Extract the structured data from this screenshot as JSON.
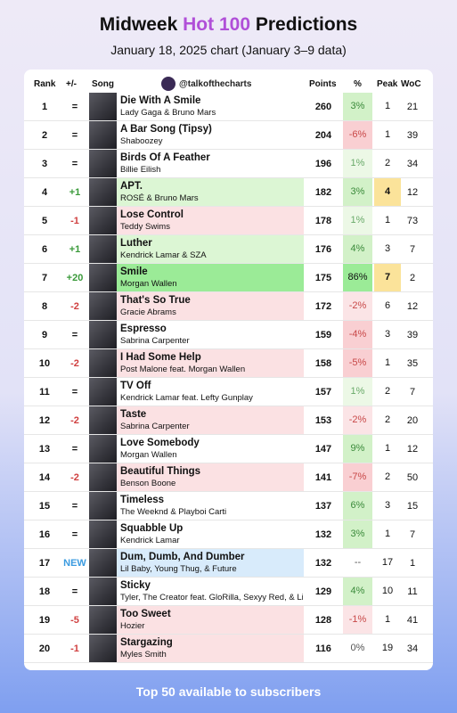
{
  "header": {
    "title": [
      "Midweek",
      "Hot 100",
      "Predictions"
    ],
    "subtitle": "January 18, 2025 chart (January 3–9 data)"
  },
  "table": {
    "columns": [
      "Rank",
      "+/-",
      "Song",
      "@talkofthecharts",
      "Points",
      "%",
      "Peak",
      "WoC"
    ],
    "rows": [
      {
        "rank": "1",
        "change": "=",
        "song": "Die With A Smile",
        "artist": "Lady Gaga & Bruno Mars",
        "points": 260,
        "pct": "3%",
        "peak": 1,
        "woc": 21
      },
      {
        "rank": "2",
        "change": "=",
        "song": "A Bar Song (Tipsy)",
        "artist": "Shaboozey",
        "points": 204,
        "pct": "-6%",
        "peak": 1,
        "woc": 39
      },
      {
        "rank": "3",
        "change": "=",
        "song": "Birds Of A Feather",
        "artist": "Billie Eilish",
        "points": 196,
        "pct": "1%",
        "peak": 2,
        "woc": 34
      },
      {
        "rank": "4",
        "change": "+1",
        "song": "APT.",
        "artist": "ROSÉ & Bruno Mars",
        "points": 182,
        "pct": "3%",
        "peak": 4,
        "woc": 12,
        "highlight": true
      },
      {
        "rank": "5",
        "change": "-1",
        "song": "Lose Control",
        "artist": "Teddy Swims",
        "points": 178,
        "pct": "1%",
        "peak": 1,
        "woc": 73
      },
      {
        "rank": "6",
        "change": "+1",
        "song": "Luther",
        "artist": "Kendrick Lamar & SZA",
        "points": 176,
        "pct": "4%",
        "peak": 3,
        "woc": 7
      },
      {
        "rank": "7",
        "change": "+20",
        "song": "Smile",
        "artist": "Morgan Wallen",
        "points": 175,
        "pct": "86%",
        "peak": 7,
        "woc": 2,
        "highlight": true
      },
      {
        "rank": "8",
        "change": "-2",
        "song": "That's So True",
        "artist": "Gracie Abrams",
        "points": 172,
        "pct": "-2%",
        "peak": 6,
        "woc": 12
      },
      {
        "rank": "9",
        "change": "=",
        "song": "Espresso",
        "artist": "Sabrina Carpenter",
        "points": 159,
        "pct": "-4%",
        "peak": 3,
        "woc": 39
      },
      {
        "rank": "10",
        "change": "-2",
        "song": "I Had Some Help",
        "artist": "Post Malone feat. Morgan Wallen",
        "points": 158,
        "pct": "-5%",
        "peak": 1,
        "woc": 35
      },
      {
        "rank": "11",
        "change": "=",
        "song": "TV Off",
        "artist": "Kendrick Lamar feat. Lefty Gunplay",
        "points": 157,
        "pct": "1%",
        "peak": 2,
        "woc": 7
      },
      {
        "rank": "12",
        "change": "-2",
        "song": "Taste",
        "artist": "Sabrina Carpenter",
        "points": 153,
        "pct": "-2%",
        "peak": 2,
        "woc": 20
      },
      {
        "rank": "13",
        "change": "=",
        "song": "Love Somebody",
        "artist": "Morgan Wallen",
        "points": 147,
        "pct": "9%",
        "peak": 1,
        "woc": 12
      },
      {
        "rank": "14",
        "change": "-2",
        "song": "Beautiful Things",
        "artist": "Benson Boone",
        "points": 141,
        "pct": "-7%",
        "peak": 2,
        "woc": 50
      },
      {
        "rank": "15",
        "change": "=",
        "song": "Timeless",
        "artist": "The Weeknd & Playboi Carti",
        "points": 137,
        "pct": "6%",
        "peak": 3,
        "woc": 15
      },
      {
        "rank": "16",
        "change": "=",
        "song": "Squabble Up",
        "artist": "Kendrick Lamar",
        "points": 132,
        "pct": "3%",
        "peak": 1,
        "woc": 7
      },
      {
        "rank": "17",
        "change": "NEW",
        "song": "Dum, Dumb, And Dumber",
        "artist": "Lil Baby, Young Thug, & Future",
        "points": 132,
        "pct": "--",
        "peak": 17,
        "woc": 1
      },
      {
        "rank": "18",
        "change": "=",
        "song": "Sticky",
        "artist": "Tyler, The Creator feat. GloRilla, Sexyy Red, & Lil",
        "points": 129,
        "pct": "4%",
        "peak": 10,
        "woc": 11
      },
      {
        "rank": "19",
        "change": "-5",
        "song": "Too Sweet",
        "artist": "Hozier",
        "points": 128,
        "pct": "-1%",
        "peak": 1,
        "woc": 41
      },
      {
        "rank": "20",
        "change": "-1",
        "song": "Stargazing",
        "artist": "Myles Smith",
        "points": 116,
        "pct": "0%",
        "peak": 19,
        "woc": 34
      }
    ]
  },
  "footer": "Top 50 available to subscribers"
}
